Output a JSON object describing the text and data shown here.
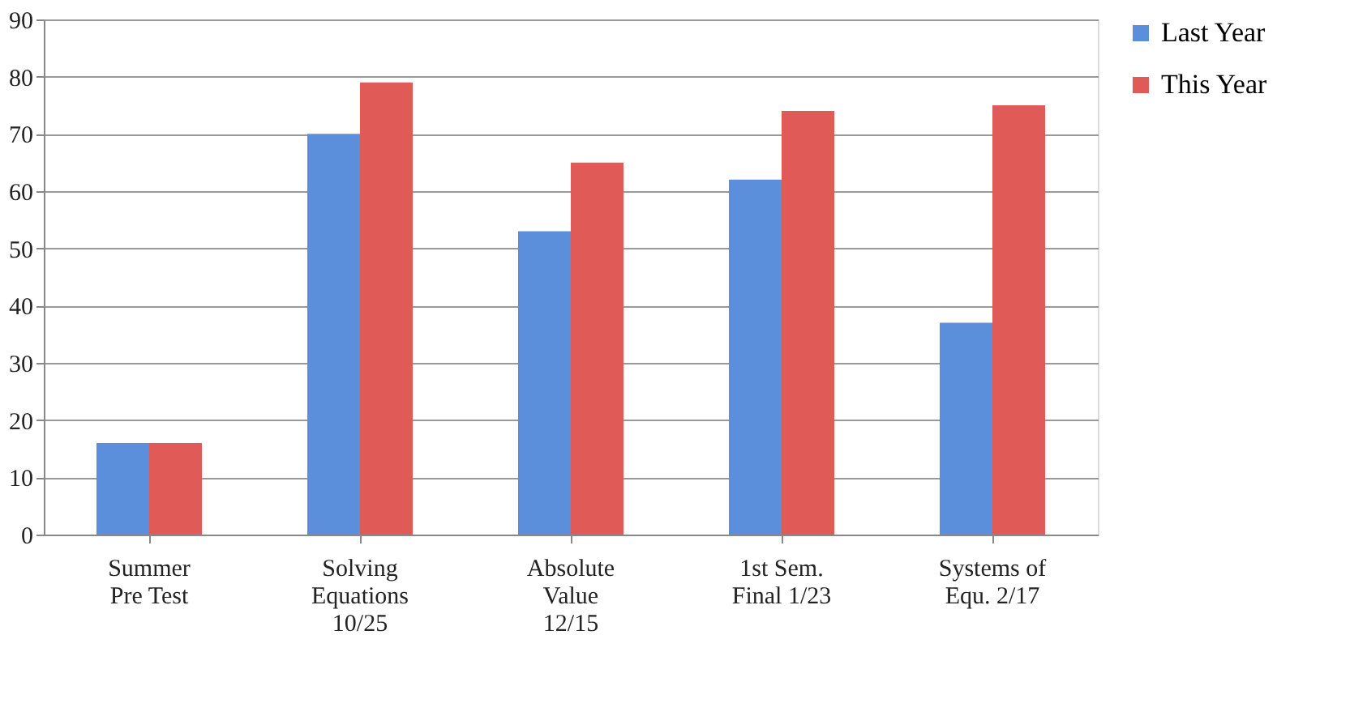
{
  "chart_data": {
    "type": "bar",
    "categories": [
      "Summer\nPre Test",
      "Solving\nEquations\n10/25",
      "Absolute\nValue\n12/15",
      "1st Sem.\nFinal 1/23",
      "Systems of\nEqu. 2/17"
    ],
    "series": [
      {
        "name": "Last Year",
        "color": "#5b8fdc",
        "values": [
          16,
          70,
          53,
          62,
          37
        ]
      },
      {
        "name": "This Year",
        "color": "#e05a57",
        "values": [
          16,
          79,
          65,
          74,
          75
        ]
      }
    ],
    "ylim": [
      0,
      90
    ],
    "yticks": [
      0,
      10,
      20,
      30,
      40,
      50,
      60,
      70,
      80,
      90
    ],
    "grid": "y",
    "legend": "right"
  }
}
